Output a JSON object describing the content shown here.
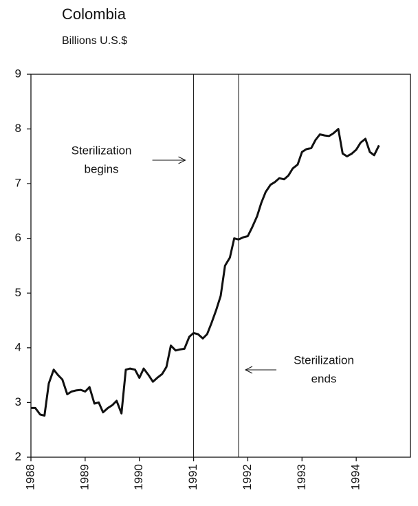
{
  "chart_data": {
    "type": "line",
    "title": "Colombia",
    "subtitle": "Billions U.S.$",
    "x": [
      1988.0,
      1988.08,
      1988.17,
      1988.25,
      1988.33,
      1988.42,
      1988.5,
      1988.58,
      1988.67,
      1988.75,
      1988.83,
      1988.92,
      1989.0,
      1989.08,
      1989.17,
      1989.25,
      1989.33,
      1989.42,
      1989.5,
      1989.58,
      1989.67,
      1989.75,
      1989.83,
      1989.92,
      1990.0,
      1990.08,
      1990.17,
      1990.25,
      1990.33,
      1990.42,
      1990.5,
      1990.58,
      1990.67,
      1990.75,
      1990.83,
      1990.92,
      1991.0,
      1991.08,
      1991.17,
      1991.25,
      1991.33,
      1991.42,
      1991.5,
      1991.58,
      1991.67,
      1991.75,
      1991.83,
      1991.92,
      1992.0,
      1992.08,
      1992.17,
      1992.25,
      1992.33,
      1992.42,
      1992.5,
      1992.58,
      1992.67,
      1992.75,
      1992.83,
      1992.92,
      1993.0,
      1993.08,
      1993.17,
      1993.25,
      1993.33,
      1993.42,
      1993.5,
      1993.58,
      1993.67,
      1993.75,
      1993.83,
      1993.92,
      1994.0,
      1994.08,
      1994.17,
      1994.25,
      1994.33,
      1994.42
    ],
    "values": [
      2.9,
      2.9,
      2.78,
      2.76,
      3.35,
      3.6,
      3.5,
      3.42,
      3.15,
      3.2,
      3.22,
      3.23,
      3.2,
      3.28,
      2.98,
      3.0,
      2.82,
      2.9,
      2.95,
      3.03,
      2.8,
      3.6,
      3.62,
      3.6,
      3.45,
      3.62,
      3.5,
      3.38,
      3.45,
      3.52,
      3.65,
      4.04,
      3.95,
      3.97,
      3.98,
      4.2,
      4.27,
      4.25,
      4.17,
      4.25,
      4.45,
      4.7,
      4.95,
      5.5,
      5.65,
      6.0,
      5.98,
      6.02,
      6.04,
      6.2,
      6.4,
      6.65,
      6.85,
      6.98,
      7.03,
      7.1,
      7.08,
      7.15,
      7.28,
      7.35,
      7.58,
      7.63,
      7.65,
      7.8,
      7.9,
      7.88,
      7.87,
      7.92,
      8.0,
      7.55,
      7.5,
      7.55,
      7.62,
      7.75,
      7.82,
      7.58,
      7.52,
      7.7
    ],
    "color": "#111111",
    "xlim": [
      1988,
      1995
    ],
    "xticks": [
      1988,
      1989,
      1990,
      1991,
      1992,
      1993,
      1994
    ],
    "ylim": [
      2,
      9
    ],
    "yticks": [
      2,
      3,
      4,
      5,
      6,
      7,
      8,
      9
    ],
    "annotations": [
      {
        "text": [
          "Sterilization",
          "begins"
        ],
        "x": 1991.0
      },
      {
        "text": [
          "Sterilization",
          "ends"
        ],
        "x": 1991.83
      }
    ]
  }
}
